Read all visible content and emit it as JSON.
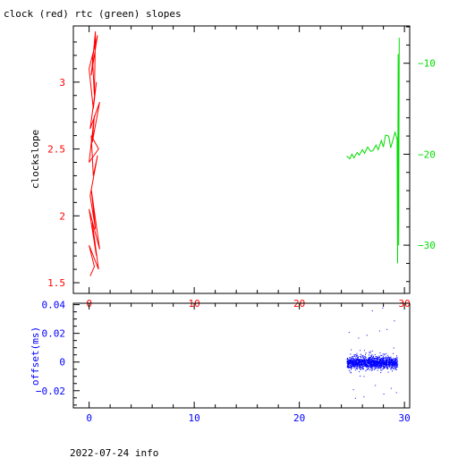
{
  "header": {
    "title": "clock (red) rtc (green) slopes"
  },
  "footer": {
    "label": "2022-07-24 info"
  },
  "colors": {
    "red": "#ff0000",
    "green": "#00dd00",
    "blue": "#0000ff",
    "frame": "#000000"
  },
  "chart_data": [
    {
      "type": "line",
      "title": "clock (red) rtc (green) slopes",
      "xlabel": "",
      "ylabel": "clockslope",
      "xlim": [
        -1.5,
        30.5
      ],
      "ylim": [
        1.42,
        3.42
      ],
      "y2lim": [
        -35.3,
        -5.9
      ],
      "xticks": [
        0,
        10,
        20,
        30
      ],
      "yticks": [
        1.5,
        2,
        2.5,
        3
      ],
      "y2ticks": [
        -30,
        -20,
        -10
      ],
      "series": [
        {
          "axis": "left",
          "color": "red",
          "x": [
            0.1,
            0.5,
            0.0,
            0.9,
            0.3,
            0.7,
            0.0,
            1.0,
            0.2,
            0.6,
            0.1,
            0.8,
            0.4,
            0.2,
            0.9,
            0.0,
            0.5,
            0.3,
            1.0,
            0.1,
            0.7,
            0.4,
            0.0,
            0.8,
            0.2,
            0.6,
            0.5,
            0.3
          ],
          "y": [
            1.55,
            1.62,
            1.78,
            1.6,
            1.95,
            1.7,
            2.05,
            1.75,
            2.2,
            1.9,
            2.15,
            2.45,
            2.3,
            2.6,
            2.5,
            2.4,
            2.75,
            2.55,
            2.85,
            2.65,
            3.0,
            2.8,
            3.1,
            3.35,
            3.05,
            3.38,
            2.9,
            3.2
          ]
        },
        {
          "axis": "right",
          "color": "green",
          "x": [
            24.5,
            24.8,
            25.0,
            25.2,
            25.5,
            25.7,
            26.0,
            26.2,
            26.5,
            26.8,
            27.0,
            27.3,
            27.5,
            27.8,
            28.0,
            28.2,
            28.5,
            28.7,
            29.0,
            29.1,
            29.3,
            29.35,
            29.4,
            29.45,
            29.5
          ],
          "y": [
            -20.2,
            -20.5,
            -20.0,
            -20.4,
            -19.8,
            -20.1,
            -19.5,
            -19.9,
            -19.2,
            -19.7,
            -19.6,
            -19.0,
            -19.5,
            -18.5,
            -19.2,
            -17.9,
            -18.0,
            -19.3,
            -18.0,
            -17.6,
            -18.3,
            -32.0,
            -9.0,
            -30.0,
            -7.2
          ]
        }
      ]
    },
    {
      "type": "scatter",
      "xlabel": "",
      "ylabel": "offset(ms)",
      "xlim": [
        -1.5,
        30.5
      ],
      "ylim": [
        -0.032,
        0.041
      ],
      "xticks": [
        0,
        10,
        20,
        30
      ],
      "yticks": [
        -0.02,
        0,
        0.02,
        0.04
      ],
      "ytick_labels": [
        "−0.02",
        "0",
        "0.02",
        "0.04"
      ],
      "series": [
        {
          "color": "blue",
          "x_range": [
            24.5,
            29.3
          ],
          "center": 0.0,
          "core_band": [
            -0.008,
            0.008
          ],
          "outliers": [
            [
              24.7,
              0.021
            ],
            [
              25.1,
              -0.019
            ],
            [
              25.6,
              0.017
            ],
            [
              26.1,
              -0.024
            ],
            [
              26.4,
              0.019
            ],
            [
              26.9,
              0.036
            ],
            [
              27.2,
              -0.016
            ],
            [
              27.6,
              0.022
            ],
            [
              28.0,
              -0.022
            ],
            [
              28.3,
              0.023
            ],
            [
              28.7,
              -0.018
            ],
            [
              29.0,
              0.029
            ],
            [
              29.2,
              -0.021
            ],
            [
              25.3,
              -0.025
            ],
            [
              27.9,
              0.038
            ]
          ]
        }
      ]
    }
  ]
}
